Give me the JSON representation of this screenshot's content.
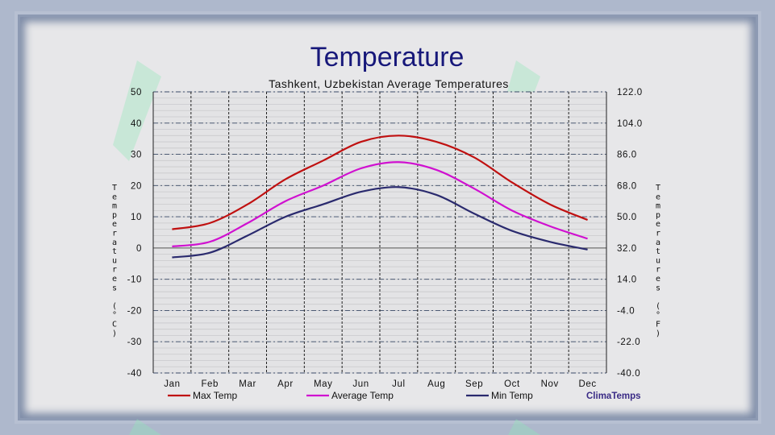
{
  "page": {
    "title": "Temperature"
  },
  "brand": "ClimaTemps",
  "chart_data": {
    "type": "line",
    "title": "Tashkent,  Uzbekistan Average Temperatures",
    "ylabel_left": "Temperatures (°C)",
    "ylabel_right": "Temperatures (°F)",
    "categories": [
      "Jan",
      "Feb",
      "Mar",
      "Apr",
      "May",
      "Jun",
      "Jul",
      "Aug",
      "Sep",
      "Oct",
      "Nov",
      "Dec"
    ],
    "ylim": [
      -40,
      50
    ],
    "yticks_left": [
      "50",
      "40",
      "30",
      "20",
      "10",
      "0",
      "-10",
      "-20",
      "-30",
      "-40"
    ],
    "yticks_right": [
      "122.0",
      "104.0",
      "86.0",
      "68.0",
      "50.0",
      "32.0",
      "14.0",
      "-4.0",
      "-22.0",
      "-40.0"
    ],
    "grid": true,
    "legend_position": "bottom",
    "series": [
      {
        "name": "Max Temp",
        "color": "#c01010",
        "values": [
          6,
          8,
          14,
          22,
          28,
          34,
          36,
          34,
          29,
          21,
          14,
          9
        ]
      },
      {
        "name": "Average Temp",
        "color": "#d010d0",
        "values": [
          0.5,
          2,
          8,
          15,
          20,
          25.5,
          27.5,
          25,
          19,
          12,
          7,
          3
        ]
      },
      {
        "name": "Min Temp",
        "color": "#2a2a6e",
        "values": [
          -3,
          -1.5,
          4,
          10,
          14,
          18,
          19.5,
          17,
          11,
          5.5,
          2,
          -0.5
        ]
      }
    ]
  }
}
